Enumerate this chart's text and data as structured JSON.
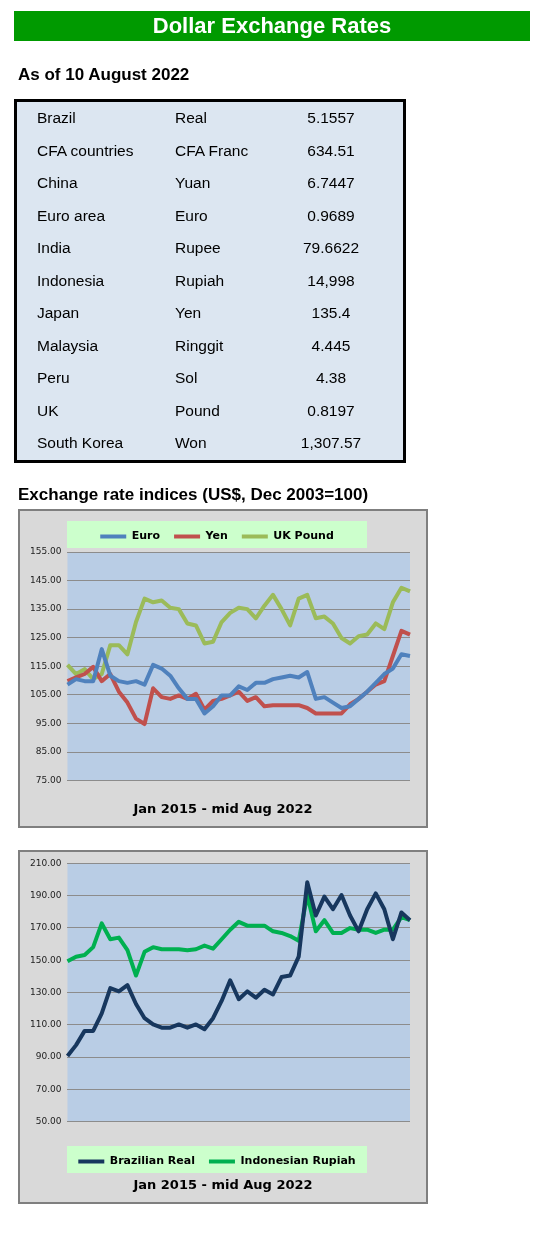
{
  "chart_data": [
    {
      "type": "other",
      "title": "Dollar Exchange Rates",
      "subtitle": "As of 10 August 2022",
      "annotations": [
        "Brazil",
        "Real",
        "5.1557",
        "CFA countries",
        "CFA Franc",
        "634.51",
        "China",
        "Yuan",
        "6.7447",
        "Euro area",
        "Euro",
        "0.9689",
        "India",
        "Rupee",
        "79.6622",
        "Indonesia",
        "Rupiah",
        "14,998",
        "Japan",
        "Yen",
        "135.4",
        "Malaysia",
        "Ringgit",
        "4.445",
        "Peru",
        "Sol",
        "4.38",
        "UK",
        "Pound",
        "0.8197",
        "South Korea",
        "Won",
        "1,307.57"
      ]
    },
    {
      "type": "line",
      "title": "Exchange rate indices (US$, Dec 2003=100)",
      "xlabel": "Jan 2015 - mid Aug 2022",
      "categories": [
        null,
        null,
        null,
        null,
        null,
        null,
        null,
        null,
        null,
        null,
        null,
        null,
        null,
        null,
        null,
        null,
        null,
        null,
        null,
        null,
        null,
        null,
        null,
        null,
        null,
        null,
        null,
        null,
        null,
        null,
        null,
        null,
        null,
        null,
        null,
        null,
        null,
        null,
        null,
        null,
        null
      ],
      "series": [
        {
          "name": "Euro",
          "color": "#4f81bd",
          "values": [
            108.6,
            110.5,
            109.8,
            109.8,
            121,
            111.7,
            109.8,
            109.2,
            109.8,
            108.6,
            115.5,
            114.2,
            111.7,
            107.3,
            103.6,
            103.6,
            98.5,
            101,
            104.8,
            104.8,
            108,
            106.7,
            109.2,
            109.2,
            110.5,
            111.1,
            111.7,
            111.1,
            113,
            103.6,
            104.2,
            102.3,
            100.4,
            101,
            103.6,
            106.1,
            109.2,
            112.3,
            114.2,
            119.2,
            118.6
          ]
        },
        {
          "name": "Yen",
          "color": "#c0504d",
          "values": [
            109.8,
            111.1,
            112.3,
            114.8,
            109.8,
            112.3,
            106.1,
            102.3,
            96.7,
            94.8,
            107.3,
            104.2,
            103.6,
            104.8,
            103.6,
            105.4,
            99.8,
            102.9,
            103.6,
            104.8,
            106.1,
            102.9,
            104.2,
            101,
            101.4,
            101.4,
            101.4,
            101.4,
            100.4,
            98.5,
            98.5,
            98.5,
            98.5,
            101.7,
            103.6,
            106.1,
            108.6,
            109.8,
            118.6,
            127.4,
            126.1
          ]
        },
        {
          "name": "UK Pound",
          "color": "#9bbb59",
          "values": [
            115.5,
            112.3,
            114,
            110.5,
            112.3,
            122.4,
            122.4,
            119.2,
            130.5,
            138.7,
            137.4,
            138,
            135.5,
            135,
            130,
            129.3,
            123,
            123.6,
            130.5,
            133.7,
            135.5,
            135,
            131.8,
            136.2,
            140,
            135,
            129.3,
            138.7,
            140,
            131.8,
            132.4,
            130,
            124.9,
            123,
            125.5,
            126.1,
            130,
            128,
            137.4,
            142.5,
            141.2
          ]
        }
      ],
      "ylim": [
        75,
        155
      ],
      "yticks": [
        {
          "value": 75,
          "label": "75.00"
        },
        {
          "value": 85,
          "label": "85.00"
        },
        {
          "value": 95,
          "label": "95.00"
        },
        {
          "value": 105,
          "label": "105.00"
        },
        {
          "value": 115,
          "label": "115.00"
        },
        {
          "value": 125,
          "label": "125.00"
        },
        {
          "value": 135,
          "label": "135.00"
        },
        {
          "value": 145,
          "label": "145.00"
        },
        {
          "value": 155,
          "label": "155.00"
        }
      ],
      "grid": "y",
      "legend": "top",
      "marker": "none"
    },
    {
      "type": "line",
      "xlabel": "Jan 2015 - mid Aug 2022",
      "categories": [
        null,
        null,
        null,
        null,
        null,
        null,
        null,
        null,
        null,
        null,
        null,
        null,
        null,
        null,
        null,
        null,
        null,
        null,
        null,
        null,
        null,
        null,
        null,
        null,
        null,
        null,
        null,
        null,
        null,
        null,
        null,
        null,
        null,
        null,
        null,
        null,
        null,
        null,
        null,
        null,
        null
      ],
      "series": [
        {
          "name": "Brazilian Real",
          "color": "#17375e",
          "values": [
            90.6,
            97.4,
            106.2,
            106.2,
            117,
            132.7,
            130.7,
            134.6,
            122.9,
            114.1,
            110.2,
            108.2,
            108.2,
            110.2,
            108.2,
            110.2,
            107.2,
            114.1,
            124.8,
            137.6,
            125.8,
            130.7,
            126.8,
            131.7,
            128.8,
            139.6,
            140.5,
            152.2,
            198.3,
            177.7,
            189.4,
            181.6,
            190.4,
            177.7,
            167.9,
            181.6,
            191.4,
            181.6,
            163,
            179.6,
            174.8
          ]
        },
        {
          "name": "Indonesian Rupiah",
          "color": "#00b050",
          "values": [
            149.3,
            152.2,
            153.2,
            158.1,
            172.8,
            163,
            164,
            156.2,
            140.5,
            155.2,
            158.1,
            156.8,
            156.8,
            156.8,
            156.2,
            156.8,
            159.1,
            157.2,
            163,
            168.9,
            173.8,
            171.4,
            171.4,
            171.4,
            167.9,
            166.9,
            165,
            162,
            190.4,
            167.9,
            174.8,
            166.9,
            166.9,
            169.9,
            168.9,
            168.9,
            166.9,
            168.9,
            168.9,
            176.7,
            174.8
          ]
        }
      ],
      "ylim": [
        50,
        210
      ],
      "yticks": [
        {
          "value": 50,
          "label": "50.00"
        },
        {
          "value": 70,
          "label": "70.00"
        },
        {
          "value": 90,
          "label": "90.00"
        },
        {
          "value": 110,
          "label": "110.00"
        },
        {
          "value": 130,
          "label": "130.00"
        },
        {
          "value": 150,
          "label": "150.00"
        },
        {
          "value": 170,
          "label": "170.00"
        },
        {
          "value": 190,
          "label": "190.00"
        },
        {
          "value": 210,
          "label": "210.00"
        }
      ],
      "grid": "y",
      "legend": "bottom",
      "marker": "none"
    }
  ]
}
